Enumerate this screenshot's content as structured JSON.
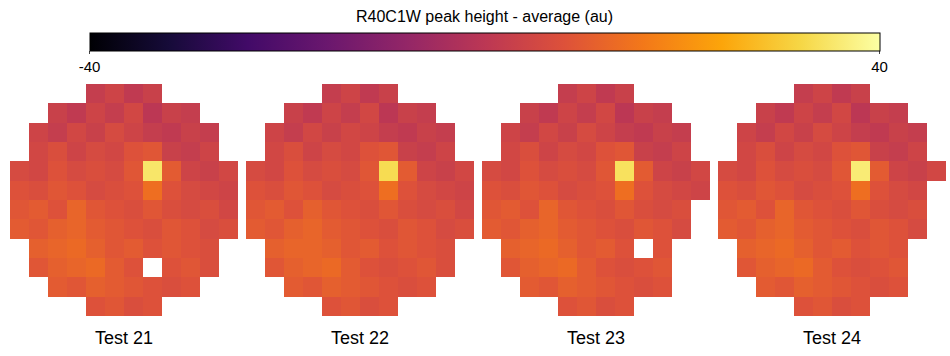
{
  "chart_data": {
    "type": "heatmap",
    "tick_labels": false,
    "colorbar": {
      "title": "R40C1W peak height - average (au)",
      "range": [
        -40,
        40
      ],
      "ticks": [
        -40,
        40
      ]
    },
    "panels": [
      {
        "title": "Test 21",
        "cells": [
          [
            null,
            null,
            null,
            null,
            2,
            4,
            1,
            3,
            null,
            null,
            null,
            null
          ],
          [
            null,
            null,
            3,
            1,
            4,
            2,
            5,
            0,
            3,
            2,
            null,
            null
          ],
          [
            null,
            4,
            2,
            5,
            3,
            6,
            4,
            2,
            1,
            3,
            2,
            null
          ],
          [
            null,
            5,
            7,
            4,
            6,
            5,
            8,
            9,
            3,
            2,
            4,
            null
          ],
          [
            6,
            5,
            8,
            6,
            7,
            6,
            9,
            35,
            10,
            4,
            3,
            5
          ],
          [
            8,
            7,
            9,
            8,
            6,
            7,
            8,
            14,
            8,
            6,
            5,
            4
          ],
          [
            9,
            10,
            8,
            12,
            9,
            8,
            7,
            9,
            7,
            6,
            7,
            5
          ],
          [
            10,
            9,
            11,
            12,
            10,
            9,
            8,
            7,
            9,
            8,
            6,
            7
          ],
          [
            null,
            11,
            12,
            13,
            11,
            9,
            10,
            8,
            9,
            8,
            7,
            null
          ],
          [
            null,
            9,
            11,
            12,
            13,
            10,
            8,
            null,
            8,
            9,
            7,
            null
          ],
          [
            null,
            null,
            10,
            9,
            11,
            10,
            9,
            8,
            7,
            8,
            null,
            null
          ],
          [
            null,
            null,
            null,
            null,
            8,
            9,
            7,
            8,
            null,
            null,
            null,
            null
          ]
        ]
      },
      {
        "title": "Test 22",
        "cells": [
          [
            null,
            null,
            null,
            null,
            2,
            4,
            1,
            3,
            null,
            null,
            null,
            null
          ],
          [
            null,
            null,
            3,
            1,
            4,
            2,
            5,
            0,
            3,
            2,
            null,
            null
          ],
          [
            null,
            4,
            2,
            5,
            3,
            5,
            4,
            2,
            1,
            3,
            2,
            null
          ],
          [
            null,
            5,
            7,
            4,
            6,
            5,
            8,
            9,
            3,
            2,
            4,
            null
          ],
          [
            6,
            5,
            8,
            6,
            7,
            6,
            9,
            33,
            10,
            4,
            3,
            5
          ],
          [
            8,
            7,
            9,
            8,
            6,
            7,
            8,
            14,
            8,
            6,
            5,
            4
          ],
          [
            9,
            10,
            8,
            11,
            9,
            8,
            7,
            9,
            7,
            6,
            7,
            5
          ],
          [
            10,
            9,
            11,
            12,
            10,
            9,
            8,
            7,
            9,
            8,
            6,
            7
          ],
          [
            null,
            11,
            12,
            12,
            11,
            9,
            10,
            8,
            9,
            8,
            7,
            null
          ],
          [
            null,
            9,
            11,
            12,
            13,
            10,
            8,
            7,
            8,
            9,
            7,
            null
          ],
          [
            null,
            null,
            10,
            9,
            11,
            10,
            9,
            8,
            7,
            8,
            null,
            null
          ],
          [
            null,
            null,
            null,
            null,
            8,
            9,
            7,
            8,
            null,
            null,
            null,
            null
          ]
        ]
      },
      {
        "title": "Test 23",
        "cells": [
          [
            null,
            null,
            null,
            null,
            2,
            4,
            1,
            3,
            null,
            null,
            null,
            null
          ],
          [
            null,
            null,
            3,
            1,
            4,
            2,
            5,
            0,
            3,
            2,
            null,
            null
          ],
          [
            null,
            4,
            2,
            5,
            3,
            6,
            4,
            2,
            1,
            3,
            2,
            null
          ],
          [
            null,
            5,
            7,
            4,
            6,
            5,
            8,
            9,
            3,
            2,
            4,
            null
          ],
          [
            6,
            5,
            8,
            6,
            7,
            6,
            9,
            34,
            10,
            4,
            3,
            5
          ],
          [
            8,
            7,
            9,
            8,
            6,
            7,
            8,
            14,
            8,
            6,
            5,
            4
          ],
          [
            9,
            10,
            8,
            12,
            9,
            8,
            7,
            9,
            7,
            6,
            7,
            null
          ],
          [
            10,
            9,
            11,
            12,
            10,
            9,
            8,
            7,
            9,
            8,
            6,
            null
          ],
          [
            null,
            11,
            12,
            13,
            11,
            9,
            10,
            8,
            null,
            8,
            null,
            null
          ],
          [
            null,
            9,
            11,
            12,
            13,
            10,
            8,
            7,
            8,
            9,
            null,
            null
          ],
          [
            null,
            null,
            10,
            9,
            11,
            10,
            9,
            8,
            7,
            8,
            null,
            null
          ],
          [
            null,
            null,
            null,
            null,
            8,
            9,
            7,
            8,
            null,
            null,
            null,
            null
          ]
        ]
      },
      {
        "title": "Test 24",
        "cells": [
          [
            null,
            null,
            null,
            null,
            2,
            4,
            1,
            3,
            null,
            null,
            null,
            null
          ],
          [
            null,
            null,
            3,
            1,
            4,
            2,
            5,
            0,
            3,
            2,
            null,
            null
          ],
          [
            null,
            4,
            2,
            5,
            3,
            6,
            4,
            2,
            1,
            3,
            2,
            null
          ],
          [
            null,
            5,
            7,
            4,
            6,
            5,
            8,
            9,
            3,
            2,
            4,
            null
          ],
          [
            6,
            5,
            8,
            6,
            7,
            6,
            9,
            36,
            10,
            4,
            3,
            5
          ],
          [
            8,
            7,
            9,
            8,
            6,
            7,
            8,
            14,
            8,
            6,
            5,
            null
          ],
          [
            9,
            10,
            8,
            12,
            9,
            8,
            7,
            9,
            7,
            6,
            7,
            null
          ],
          [
            10,
            9,
            11,
            12,
            10,
            9,
            8,
            7,
            9,
            8,
            6,
            null
          ],
          [
            null,
            11,
            12,
            13,
            11,
            9,
            10,
            8,
            9,
            8,
            null,
            null
          ],
          [
            null,
            9,
            11,
            12,
            13,
            10,
            8,
            7,
            8,
            9,
            null,
            null
          ],
          [
            null,
            null,
            10,
            9,
            11,
            10,
            9,
            8,
            7,
            8,
            null,
            null
          ],
          [
            null,
            null,
            null,
            null,
            8,
            9,
            7,
            8,
            null,
            null,
            null,
            null
          ]
        ]
      }
    ]
  }
}
